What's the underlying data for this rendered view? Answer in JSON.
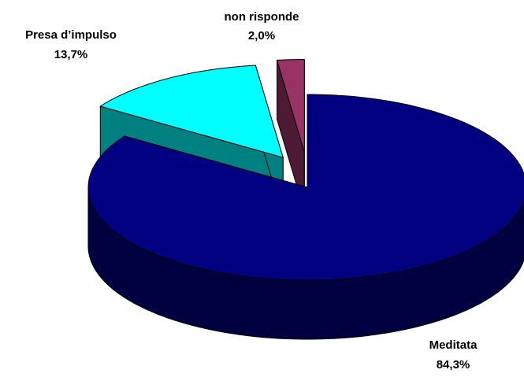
{
  "chart_data": {
    "type": "pie3d",
    "categories": [
      "Meditata",
      "Presa d’impulso",
      "non risponde"
    ],
    "values": [
      84.3,
      13.7,
      2.0
    ],
    "value_labels": [
      "84,3%",
      "13,7%",
      "2,0%"
    ],
    "colors": [
      "#000080",
      "#00ffff",
      "#993366"
    ]
  }
}
